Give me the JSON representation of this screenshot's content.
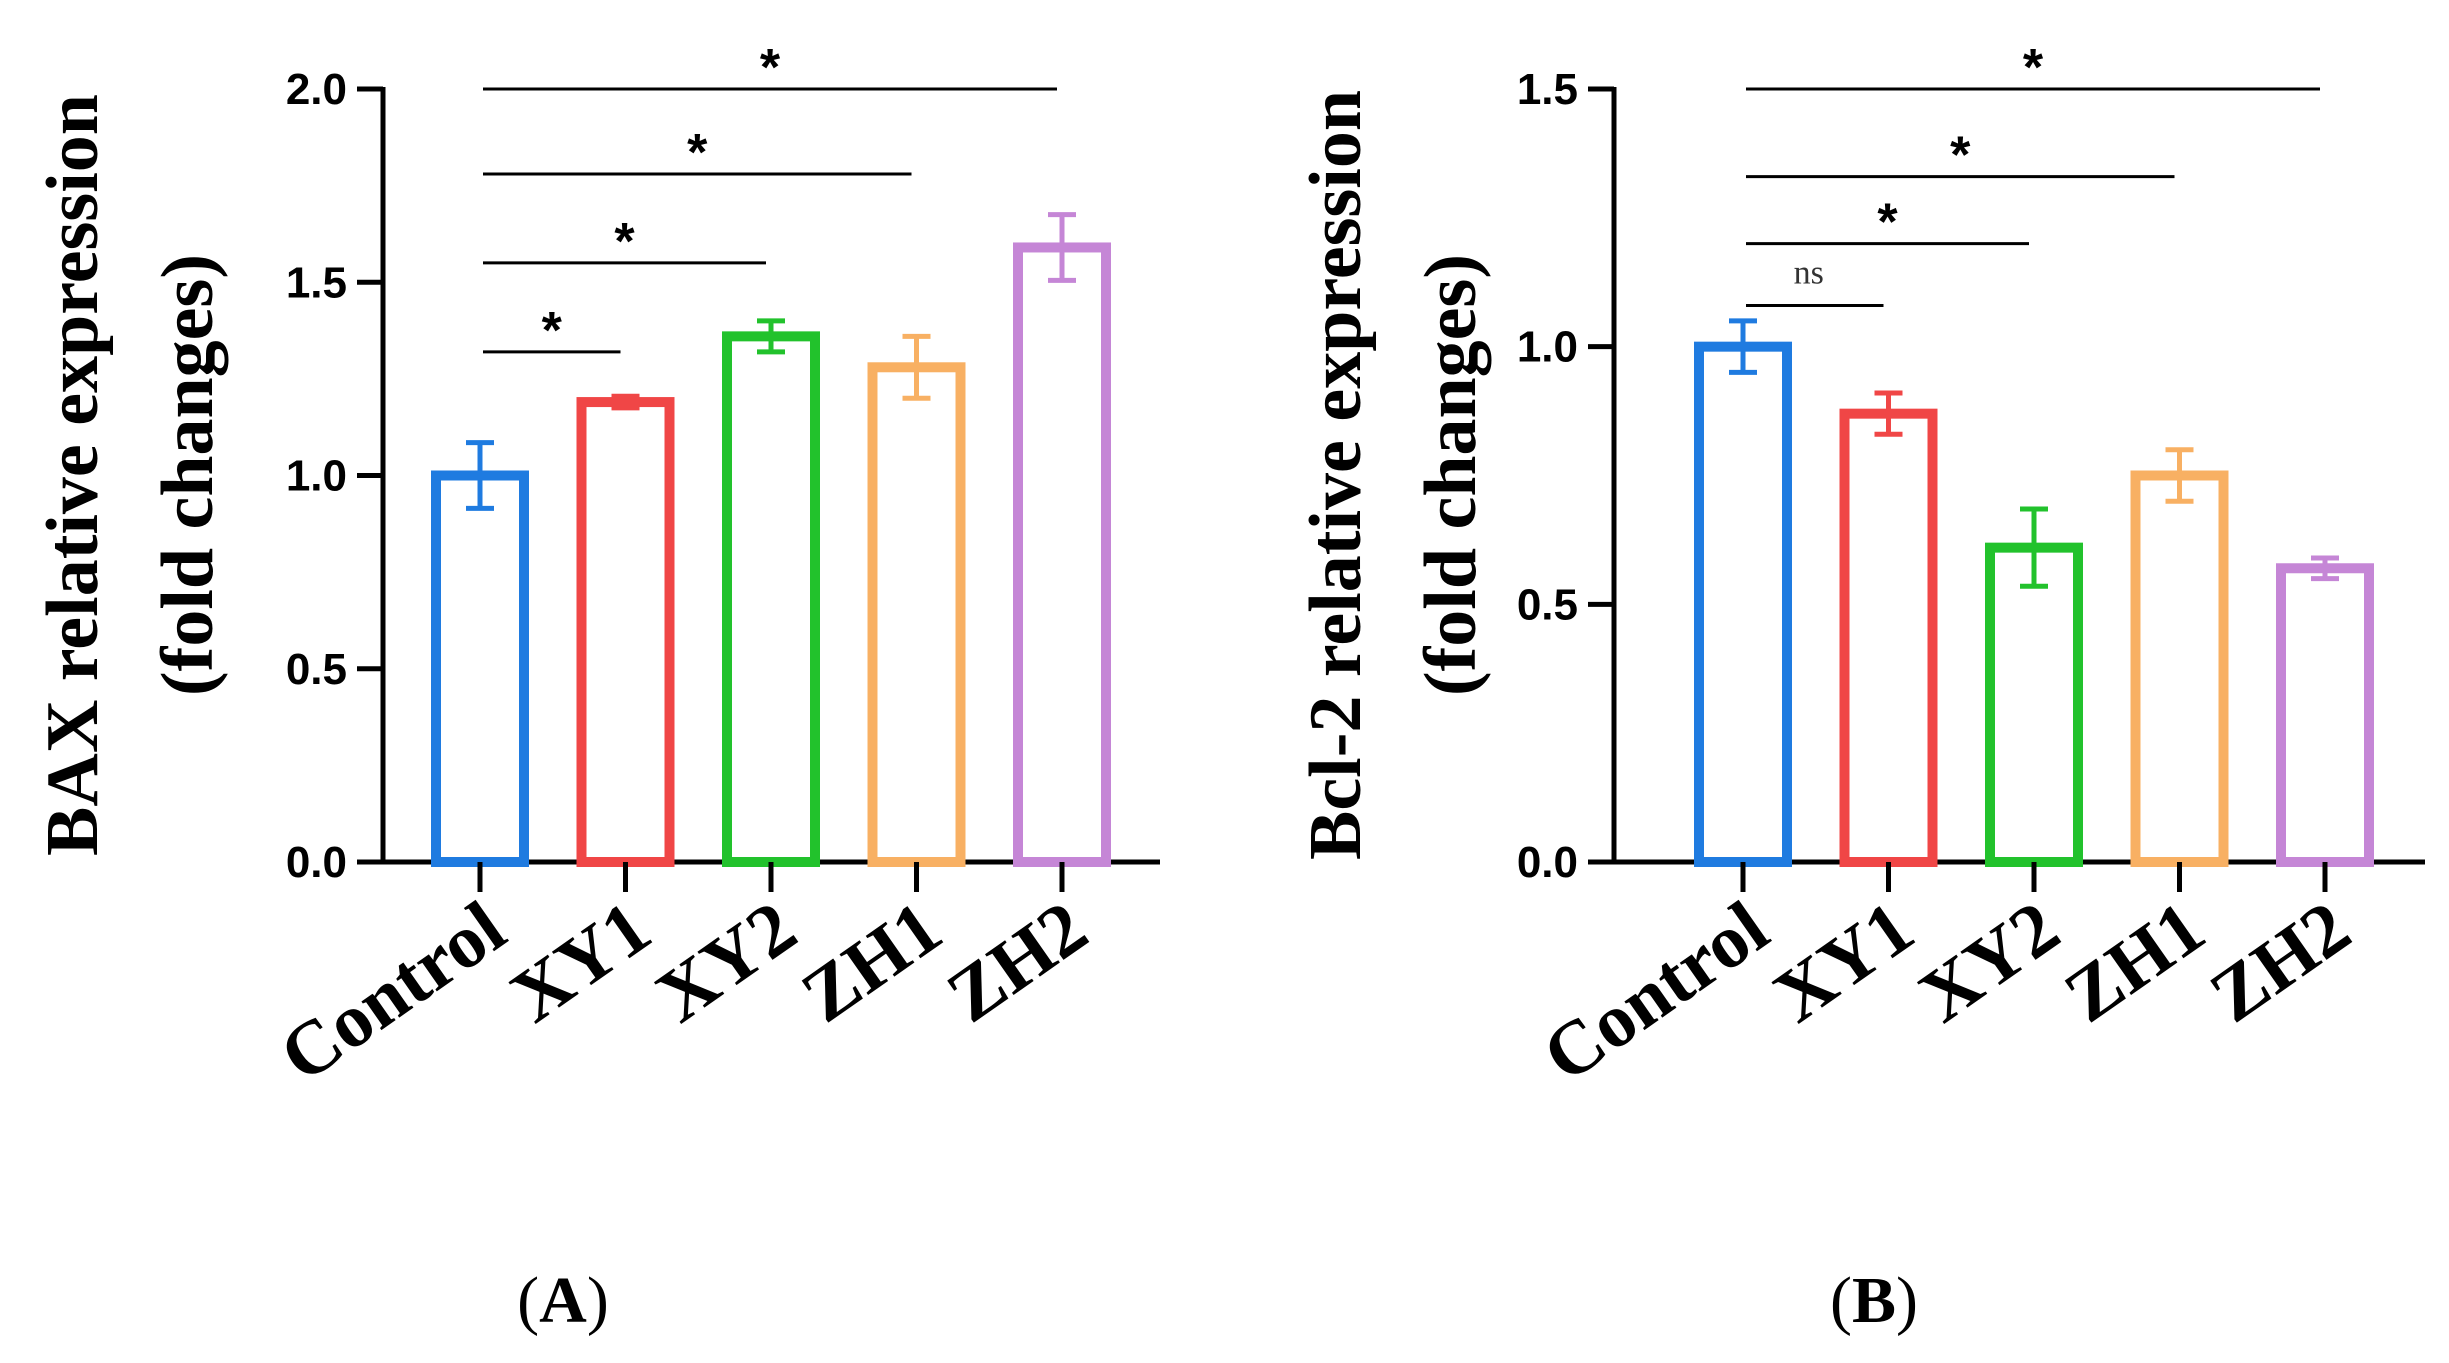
{
  "chart_data": [
    {
      "type": "bar",
      "panel_label": "A",
      "ylabel_line1": "BAX relative expression",
      "ylabel_line2": "(fold changes)",
      "ylim": [
        0,
        2.0
      ],
      "yticks": [
        0.0,
        0.5,
        1.0,
        1.5,
        2.0
      ],
      "ytick_labels": [
        "0.0",
        "0.5",
        "1.0",
        "1.5",
        "2.0"
      ],
      "categories": [
        "Control",
        "XY1",
        "XY2",
        "ZH1",
        "ZH2"
      ],
      "colors": [
        "#1f7be0",
        "#f04646",
        "#22c22c",
        "#f8b063",
        "#c586d6"
      ],
      "values": [
        1.0,
        1.19,
        1.36,
        1.28,
        1.59
      ],
      "errors": [
        0.085,
        0.015,
        0.04,
        0.08,
        0.085
      ],
      "comparisons": [
        {
          "from": "Control",
          "to": "XY1",
          "label": "*",
          "y": 1.32
        },
        {
          "from": "Control",
          "to": "XY2",
          "label": "*",
          "y": 1.55
        },
        {
          "from": "Control",
          "to": "ZH1",
          "label": "*",
          "y": 1.78
        },
        {
          "from": "Control",
          "to": "ZH2",
          "label": "*",
          "y": 2.0
        }
      ]
    },
    {
      "type": "bar",
      "panel_label": "B",
      "ylabel_line1": "Bcl-2 relative expression",
      "ylabel_line2": "(fold changes)",
      "ylim": [
        0,
        1.5
      ],
      "yticks": [
        0.0,
        0.5,
        1.0,
        1.5
      ],
      "ytick_labels": [
        "0.0",
        "0.5",
        "1.0",
        "1.5"
      ],
      "categories": [
        "Control",
        "XY1",
        "XY2",
        "ZH1",
        "ZH2"
      ],
      "colors": [
        "#1f7be0",
        "#f04646",
        "#22c22c",
        "#f8b063",
        "#c586d6"
      ],
      "values": [
        1.0,
        0.87,
        0.61,
        0.75,
        0.57
      ],
      "errors": [
        0.05,
        0.04,
        0.075,
        0.05,
        0.02
      ],
      "comparisons": [
        {
          "from": "Control",
          "to": "XY1",
          "label": "ns",
          "y": 1.08
        },
        {
          "from": "Control",
          "to": "XY2",
          "label": "*",
          "y": 1.2
        },
        {
          "from": "Control",
          "to": "ZH1",
          "label": "*",
          "y": 1.33
        },
        {
          "from": "Control",
          "to": "ZH2",
          "label": "*",
          "y": 1.5
        }
      ]
    }
  ]
}
